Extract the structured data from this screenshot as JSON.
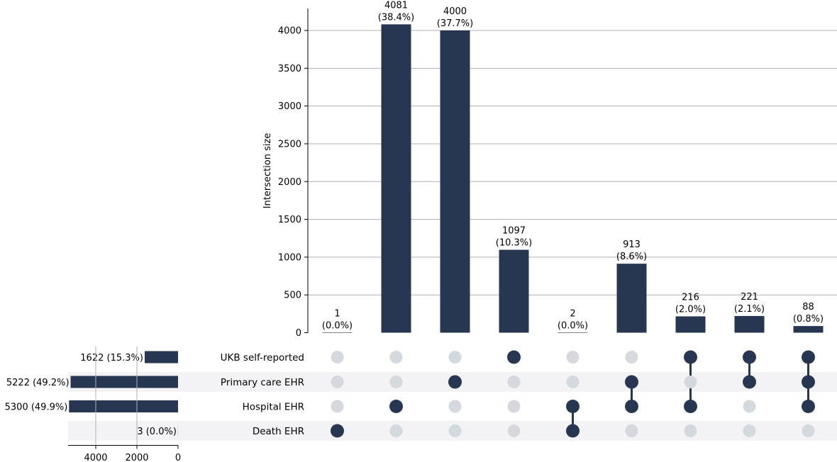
{
  "chart_data": {
    "type": "upset",
    "ylabel": "Intersection size",
    "ylim": [
      0,
      4300
    ],
    "yticks": [
      0,
      500,
      1000,
      1500,
      2000,
      2500,
      3000,
      3500,
      4000
    ],
    "grid": true,
    "bar_color": "#283751",
    "inactive_dot_color": "#d5d8dd",
    "stripe_color": "#f3f3f5",
    "sets": [
      {
        "name": "UKB self-reported",
        "size": 1622,
        "label": "1622 (15.3%)"
      },
      {
        "name": "Primary care EHR",
        "size": 5222,
        "label": "5222 (49.2%)"
      },
      {
        "name": "Hospital EHR",
        "size": 5300,
        "label": "5300 (49.9%)"
      },
      {
        "name": "Death EHR",
        "size": 3,
        "label": "3 (0.0%)"
      }
    ],
    "set_size_ticks": [
      4000,
      2000,
      0
    ],
    "intersections": [
      {
        "value": 1,
        "count_label": "1",
        "pct_label": "(0.0%)",
        "members": [
          3
        ]
      },
      {
        "value": 4081,
        "count_label": "4081",
        "pct_label": "(38.4%)",
        "members": [
          2
        ]
      },
      {
        "value": 4000,
        "count_label": "4000",
        "pct_label": "(37.7%)",
        "members": [
          1
        ]
      },
      {
        "value": 1097,
        "count_label": "1097",
        "pct_label": "(10.3%)",
        "members": [
          0
        ]
      },
      {
        "value": 2,
        "count_label": "2",
        "pct_label": "(0.0%)",
        "members": [
          2,
          3
        ]
      },
      {
        "value": 913,
        "count_label": "913",
        "pct_label": "(8.6%)",
        "members": [
          1,
          2
        ]
      },
      {
        "value": 216,
        "count_label": "216",
        "pct_label": "(2.0%)",
        "members": [
          0,
          2
        ]
      },
      {
        "value": 221,
        "count_label": "221",
        "pct_label": "(2.1%)",
        "members": [
          0,
          1
        ]
      },
      {
        "value": 88,
        "count_label": "88",
        "pct_label": "(0.8%)",
        "members": [
          0,
          1,
          2
        ]
      }
    ]
  }
}
